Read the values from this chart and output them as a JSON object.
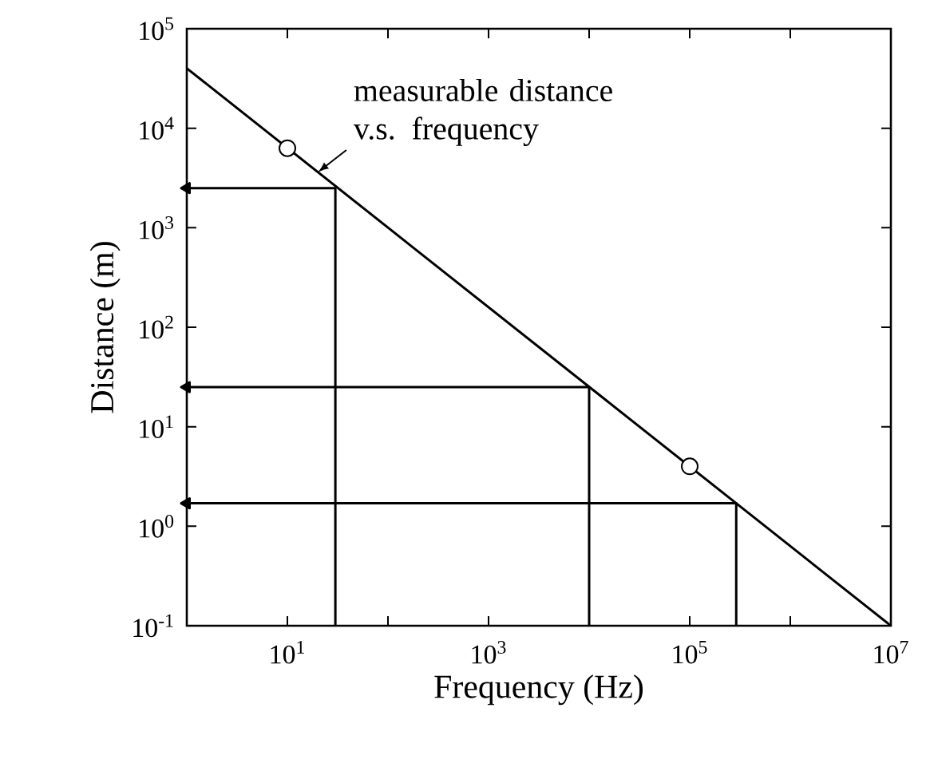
{
  "chart_data": {
    "type": "line",
    "xlabel": "Frequency (Hz)",
    "ylabel": "Distance (m)",
    "log": "xy",
    "grid": false,
    "xlim": [
      1,
      10000000
    ],
    "ylim": [
      0.1,
      100000
    ],
    "xticks": [
      {
        "value": 10,
        "label": "10$^{1}$"
      },
      {
        "value": 100,
        "label": null
      },
      {
        "value": 1000,
        "label": "10$^{3}$"
      },
      {
        "value": 10000,
        "label": null
      },
      {
        "value": 100000,
        "label": "10$^{5}$"
      },
      {
        "value": 1000000,
        "label": null
      },
      {
        "value": 10000000,
        "label": "10$^{7}$"
      }
    ],
    "yticks": [
      {
        "value": 0.1,
        "label": "10$^{-1}$"
      },
      {
        "value": 1,
        "label": "10$^{0}$"
      },
      {
        "value": 10,
        "label": "10$^{1}$"
      },
      {
        "value": 100,
        "label": "10$^{2}$"
      },
      {
        "value": 1000,
        "label": "10$^{3}$"
      },
      {
        "value": 10000,
        "label": "10$^{4}$"
      },
      {
        "value": 100000,
        "label": "10$^{5}$"
      }
    ],
    "annotations": [
      {
        "text": "measurable distance v.s. frequency",
        "x": 20,
        "y": 3600
      }
    ],
    "series": [
      {
        "color": "#000000",
        "marker": "none",
        "x": [
          1,
          10000000
        ],
        "values": [
          40000,
          0.1
        ]
      },
      {
        "type": "scatter",
        "color": "#000000",
        "marker": "circle",
        "x": [
          10,
          100000
        ],
        "values": [
          6300,
          4
        ]
      },
      {
        "color": "#000000",
        "marker": "none",
        "x": [
          1,
          30,
          30
        ],
        "values": [
          2500,
          2500,
          0.1
        ]
      },
      {
        "color": "#000000",
        "marker": "none",
        "x": [
          1,
          10000,
          10000
        ],
        "values": [
          25,
          25,
          0.1
        ]
      },
      {
        "color": "#000000",
        "marker": "none",
        "x": [
          1,
          290000,
          290000
        ],
        "values": [
          1.7,
          1.7,
          0.1
        ]
      }
    ]
  }
}
